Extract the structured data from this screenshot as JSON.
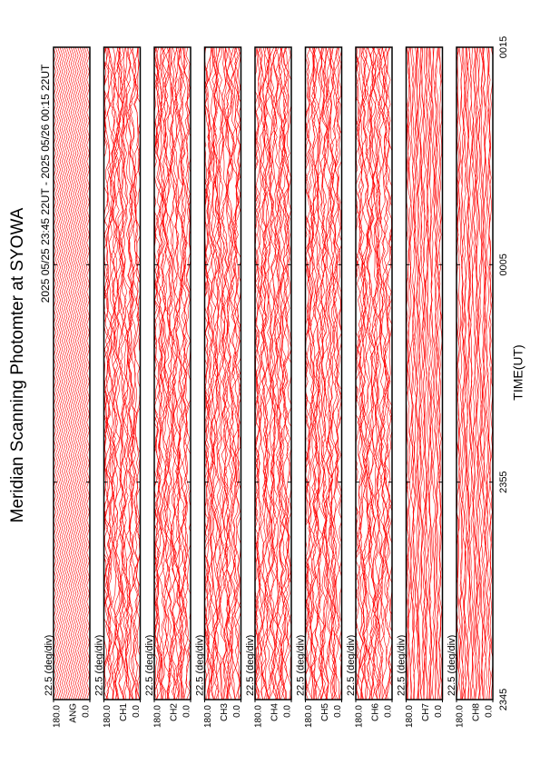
{
  "chart_data": {
    "type": "line",
    "title": "Meridian Scanning Photomter at SYOWA",
    "subtitle": "2025 05/25 23:45 22UT - 2025 05/26 00:15 22UT",
    "x_label": "TIME(UT)",
    "xticks": [
      "2345",
      "2355",
      "0005",
      "0015"
    ],
    "color": "#ff0000",
    "panels": [
      {
        "label": "ANG",
        "scale": "22.5 (deg/div)",
        "ylim": [
          0,
          180
        ],
        "yticks": [
          {
            "value": 180,
            "label": "180.0"
          },
          {
            "value": 0,
            "label": "0.0"
          }
        ]
      },
      {
        "label": "CH1",
        "scale": "22.5 (deg/div)",
        "ylim": [
          0,
          180
        ],
        "yticks": [
          {
            "value": 180,
            "label": "180.0"
          },
          {
            "value": 0,
            "label": "0.0"
          }
        ]
      },
      {
        "label": "CH2",
        "scale": "22.5 (deg/div)",
        "ylim": [
          0,
          180
        ],
        "yticks": [
          {
            "value": 180,
            "label": "180.0"
          },
          {
            "value": 0,
            "label": "0.0"
          }
        ]
      },
      {
        "label": "CH3",
        "scale": "22.5 (deg/div)",
        "ylim": [
          0,
          180
        ],
        "yticks": [
          {
            "value": 180,
            "label": "180.0"
          },
          {
            "value": 0,
            "label": "0.0"
          }
        ]
      },
      {
        "label": "CH4",
        "scale": "22.5 (deg/div)",
        "ylim": [
          0,
          180
        ],
        "yticks": [
          {
            "value": 180,
            "label": "180.0"
          },
          {
            "value": 0,
            "label": "0.0"
          }
        ]
      },
      {
        "label": "CH5",
        "scale": "22.5 (deg/div)",
        "ylim": [
          0,
          180
        ],
        "yticks": [
          {
            "value": 180,
            "label": "180.0"
          },
          {
            "value": 0,
            "label": "0.0"
          }
        ]
      },
      {
        "label": "CH6",
        "scale": "22.5 (deg/div)",
        "ylim": [
          0,
          180
        ],
        "yticks": [
          {
            "value": 180,
            "label": "180.0"
          },
          {
            "value": 0,
            "label": "0.0"
          }
        ]
      },
      {
        "label": "CH7",
        "scale": "22.5 (deg/div)",
        "ylim": [
          0,
          180
        ],
        "yticks": [
          {
            "value": 180,
            "label": "180.0"
          },
          {
            "value": 0,
            "label": "0.0"
          }
        ]
      },
      {
        "label": "CH8",
        "scale": "22.5 (deg/div)",
        "ylim": [
          0,
          180
        ],
        "yticks": [
          {
            "value": 180,
            "label": "180.0"
          },
          {
            "value": 0,
            "label": "0.0"
          }
        ]
      }
    ]
  }
}
